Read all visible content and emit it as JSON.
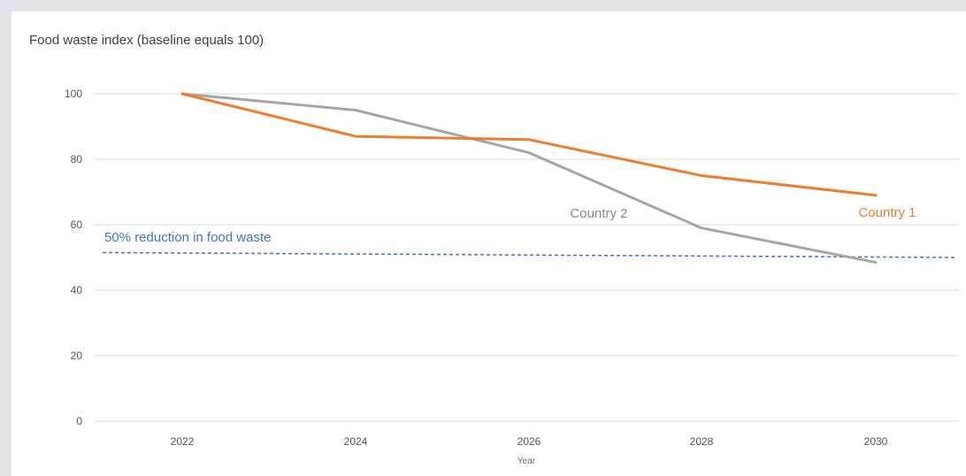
{
  "chart_data": {
    "type": "line",
    "title": "Food waste index (baseline equals 100)",
    "xlabel": "Year",
    "ylabel": "",
    "x": [
      "2022",
      "2024",
      "2026",
      "2028",
      "2030"
    ],
    "ylim": [
      0,
      100
    ],
    "y_ticks": [
      "0",
      "20",
      "40",
      "60",
      "80",
      "100"
    ],
    "grid": true,
    "series": [
      {
        "name": "Country 1",
        "color": "#ed7d31",
        "values": [
          100,
          87,
          86,
          75,
          69
        ]
      },
      {
        "name": "Country 2",
        "color": "#a5a5a5",
        "values": [
          100,
          95,
          82,
          59,
          48.5
        ]
      }
    ],
    "reference_line": {
      "label": "50% reduction in food waste",
      "color": "#4472c4",
      "style": "dashed",
      "y_start": 51.5,
      "y_end": 50
    }
  }
}
